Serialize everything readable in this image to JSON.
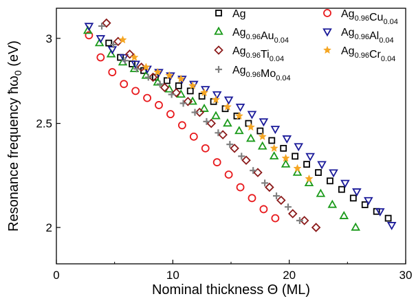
{
  "chart_data": {
    "type": "scatter",
    "xlabel": "Nominal thickness Θ (ML)",
    "ylabel": "Resonance frequency ħω",
    "ylabel_sub": "0",
    "ylabel_unit": " (eV)",
    "xlim": [
      0,
      30
    ],
    "ylim": [
      1.85,
      3.2
    ],
    "y_log": true,
    "x_ticks": [
      0,
      10,
      20,
      30
    ],
    "y_ticks": [
      2,
      2.5,
      3
    ],
    "grid": false,
    "legend_placement": "top-right",
    "series": [
      {
        "name": "Ag",
        "name_parts": [
          [
            "Ag",
            ""
          ]
        ],
        "marker": "square",
        "color": "#000000",
        "x": [
          4.5,
          5.5,
          6.5,
          7.5,
          8.5,
          9.5,
          10.5,
          11.5,
          12.5,
          13.5,
          14.5,
          15.5,
          16.5,
          17.5,
          18.5,
          19.5,
          20.5,
          21.5,
          22.5,
          23.5,
          24.5,
          25.5,
          26.5,
          27.5,
          28.5
        ],
        "y": [
          2.97,
          2.88,
          2.84,
          2.8,
          2.76,
          2.74,
          2.71,
          2.68,
          2.65,
          2.62,
          2.58,
          2.54,
          2.5,
          2.46,
          2.41,
          2.37,
          2.33,
          2.29,
          2.25,
          2.21,
          2.17,
          2.13,
          2.1,
          2.07,
          2.04
        ]
      },
      {
        "name": "Ag0.96Cu0.04",
        "name_parts": [
          [
            "Ag",
            "0.96"
          ],
          [
            "Cu",
            "0.04"
          ]
        ],
        "marker": "circle",
        "color": "#e8191c",
        "x": [
          2.8,
          3.8,
          4.8,
          5.8,
          6.8,
          7.8,
          8.8,
          9.8,
          10.8,
          11.8,
          12.8,
          13.8,
          14.8,
          15.8,
          16.8,
          17.8,
          18.8
        ],
        "y": [
          3.02,
          2.88,
          2.79,
          2.72,
          2.68,
          2.64,
          2.6,
          2.55,
          2.49,
          2.43,
          2.37,
          2.3,
          2.24,
          2.18,
          2.13,
          2.08,
          2.04
        ]
      },
      {
        "name": "Ag0.96Au0.04",
        "name_parts": [
          [
            "Ag",
            "0.96"
          ],
          [
            "Au",
            "0.04"
          ]
        ],
        "marker": "triangle-up",
        "color": "#1a9a1a",
        "x": [
          2.7,
          3.7,
          4.7,
          5.7,
          6.7,
          7.7,
          8.7,
          9.7,
          10.7,
          11.7,
          12.7,
          13.7,
          14.7,
          15.7,
          16.7,
          17.7,
          18.7,
          19.7,
          20.7,
          21.7,
          22.7,
          23.7,
          24.7,
          25.7
        ],
        "y": [
          3.05,
          2.97,
          2.9,
          2.85,
          2.81,
          2.77,
          2.73,
          2.69,
          2.66,
          2.62,
          2.58,
          2.54,
          2.5,
          2.46,
          2.42,
          2.38,
          2.33,
          2.29,
          2.25,
          2.2,
          2.15,
          2.1,
          2.05,
          2.0
        ]
      },
      {
        "name": "Ag0.96Al0.04",
        "name_parts": [
          [
            "Ag",
            "0.96"
          ],
          [
            "Al",
            "0.04"
          ]
        ],
        "marker": "triangle-down",
        "color": "#1a1a99",
        "x": [
          2.8,
          3.8,
          4.8,
          5.8,
          6.8,
          7.8,
          8.8,
          9.8,
          10.8,
          11.8,
          12.8,
          13.8,
          14.8,
          15.8,
          16.8,
          17.8,
          18.8,
          19.8,
          20.8,
          21.8,
          22.8,
          23.8,
          24.8,
          25.8,
          26.8,
          27.8,
          28.8
        ],
        "y": [
          3.08,
          3.0,
          2.93,
          2.88,
          2.84,
          2.81,
          2.79,
          2.77,
          2.75,
          2.72,
          2.69,
          2.66,
          2.63,
          2.59,
          2.55,
          2.51,
          2.47,
          2.42,
          2.38,
          2.33,
          2.29,
          2.25,
          2.2,
          2.16,
          2.12,
          2.07,
          2.01
        ]
      },
      {
        "name": "Ag0.96Ti0.04",
        "name_parts": [
          [
            "Ag",
            "0.96"
          ],
          [
            "Ti",
            "0.04"
          ]
        ],
        "marker": "diamond",
        "color": "#8b1a1a",
        "x": [
          4.3,
          5.3,
          6.3,
          7.3,
          8.3,
          9.3,
          10.3,
          11.3,
          12.3,
          13.3,
          14.3,
          15.3,
          16.3,
          17.3,
          18.3,
          19.3,
          20.3,
          21.3,
          22.3
        ],
        "y": [
          3.1,
          2.98,
          2.9,
          2.82,
          2.76,
          2.7,
          2.67,
          2.62,
          2.56,
          2.5,
          2.44,
          2.37,
          2.31,
          2.25,
          2.18,
          2.12,
          2.06,
          2.03,
          2.0
        ]
      },
      {
        "name": "Ag0.96Cr0.04",
        "name_parts": [
          [
            "Ag",
            "0.96"
          ],
          [
            "Cr",
            "0.04"
          ]
        ],
        "marker": "star",
        "color": "#f5a623",
        "x": [
          5.7,
          6.7,
          7.7,
          8.7,
          9.7,
          10.7,
          11.7,
          12.7,
          13.7,
          14.7,
          15.7,
          16.7,
          17.7,
          18.7,
          19.7,
          20.7,
          21.7
        ],
        "y": [
          2.99,
          2.88,
          2.82,
          2.79,
          2.77,
          2.75,
          2.71,
          2.67,
          2.63,
          2.59,
          2.54,
          2.48,
          2.43,
          2.37,
          2.32,
          2.27,
          2.22
        ]
      },
      {
        "name": "Ag0.96Mo0.04",
        "name_parts": [
          [
            "Ag",
            "0.96"
          ],
          [
            "Mo",
            "0.04"
          ]
        ],
        "marker": "plus",
        "color": "#808080",
        "x": [
          3.9,
          4.9,
          5.9,
          6.9,
          7.9,
          8.9,
          9.9,
          10.9,
          11.9,
          12.9,
          13.9,
          14.9,
          15.9,
          16.9,
          17.9,
          18.9,
          19.9,
          20.9
        ],
        "y": [
          3.08,
          2.96,
          2.86,
          2.81,
          2.76,
          2.72,
          2.66,
          2.61,
          2.56,
          2.51,
          2.45,
          2.39,
          2.33,
          2.26,
          2.2,
          2.14,
          2.09,
          2.03
        ]
      }
    ]
  }
}
